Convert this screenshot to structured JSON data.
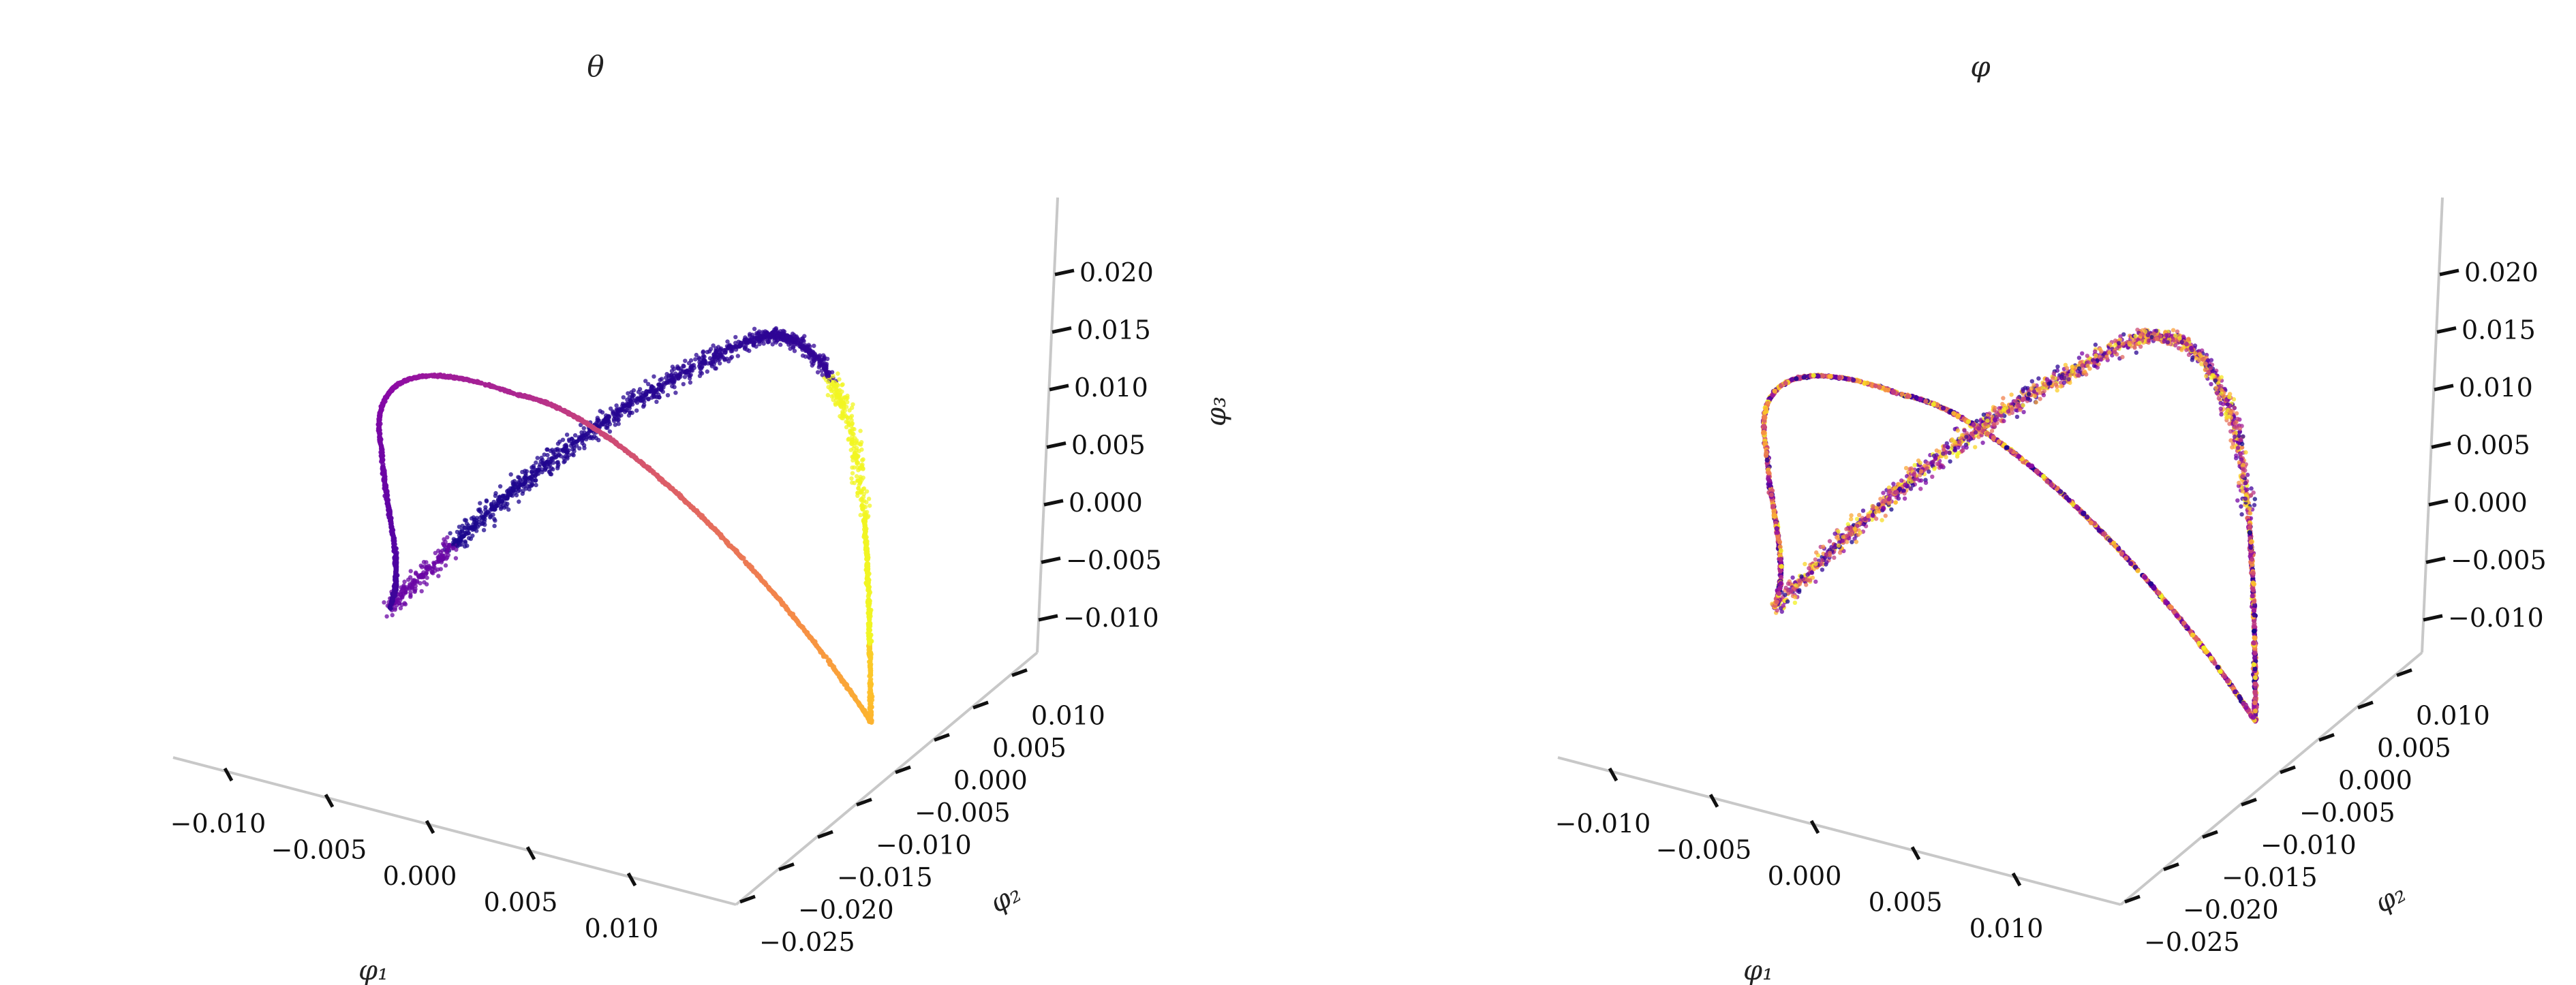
{
  "colormap": {
    "name": "plasma",
    "stops": [
      "#0d0887",
      "#5302a3",
      "#8b0aa5",
      "#b83289",
      "#db5c68",
      "#f48849",
      "#febd2a",
      "#f0f921"
    ]
  },
  "chart_data": [
    {
      "type": "scatter3d",
      "title": "θ",
      "xlabel": "φ₁",
      "ylabel": "φ₂",
      "zlabel": "φ₃",
      "x_ticks": [
        "−0.010",
        "−0.005",
        "0.000",
        "0.005",
        "0.010"
      ],
      "y_ticks": [
        "−0.025",
        "−0.020",
        "−0.015",
        "−0.010",
        "−0.005",
        "0.000",
        "0.005",
        "0.010"
      ],
      "z_ticks": [
        "−0.010",
        "−0.005",
        "0.000",
        "0.005",
        "0.010",
        "0.015",
        "0.020"
      ],
      "grid": false,
      "color_mode": "smooth"
    },
    {
      "type": "scatter3d",
      "title": "φ",
      "xlabel": "φ₁",
      "ylabel": "φ₂",
      "zlabel": "",
      "x_ticks": [
        "−0.010",
        "−0.005",
        "0.000",
        "0.005",
        "0.010"
      ],
      "y_ticks": [
        "−0.025",
        "−0.020",
        "−0.015",
        "−0.010",
        "−0.005",
        "0.000",
        "0.005",
        "0.010"
      ],
      "z_ticks": [
        "−0.010",
        "−0.005",
        "0.000",
        "0.005",
        "0.010",
        "0.015",
        "0.020"
      ],
      "grid": false,
      "color_mode": "mixed"
    }
  ]
}
